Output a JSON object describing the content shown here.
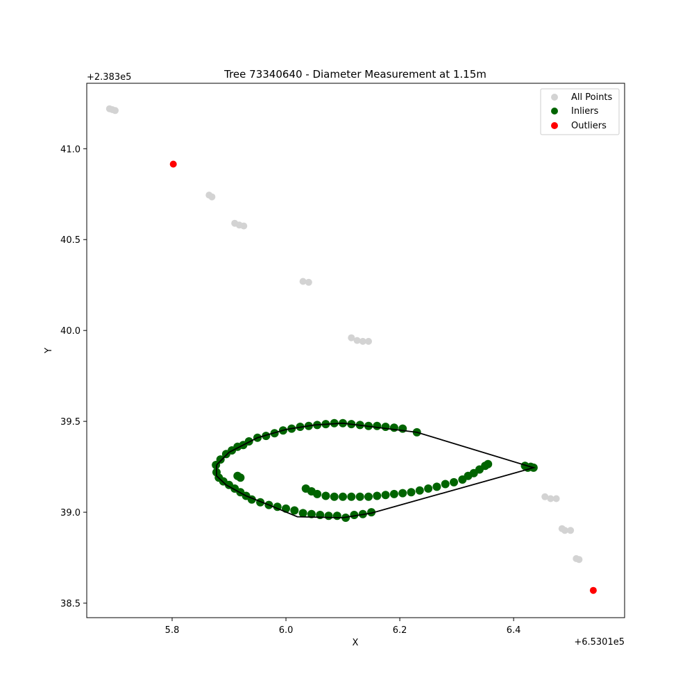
{
  "chart_data": {
    "type": "scatter",
    "title": "Tree 73340640 - Diameter Measurement at 1.15m",
    "xlabel": "X",
    "ylabel": "Y",
    "x_offset_text": "+6.5301e5",
    "y_offset_text": "+2.383e5",
    "xlim": [
      5.65,
      6.595
    ],
    "ylim": [
      38.42,
      41.36
    ],
    "xticks": [
      5.8,
      6.0,
      6.2,
      6.4
    ],
    "xtick_labels": [
      "5.8",
      "6.0",
      "6.2",
      "6.4"
    ],
    "yticks": [
      38.5,
      39.0,
      39.5,
      40.0,
      40.5,
      41.0
    ],
    "ytick_labels": [
      "38.5",
      "39.0",
      "39.5",
      "40.0",
      "40.5",
      "41.0"
    ],
    "grid": false,
    "legend_placement": "upper-right",
    "colors": {
      "all_points": "#d3d3d3",
      "inliers": "#006400",
      "outliers": "#ff0000",
      "hull": "#000000"
    },
    "series": [
      {
        "name": "All Points",
        "kind": "scatter",
        "points": [
          [
            5.69,
            41.22
          ],
          [
            5.695,
            41.215
          ],
          [
            5.7,
            41.21
          ],
          [
            5.865,
            40.745
          ],
          [
            5.87,
            40.735
          ],
          [
            5.91,
            40.59
          ],
          [
            5.918,
            40.58
          ],
          [
            5.926,
            40.575
          ],
          [
            6.03,
            40.27
          ],
          [
            6.04,
            40.265
          ],
          [
            6.115,
            39.96
          ],
          [
            6.125,
            39.945
          ],
          [
            6.135,
            39.94
          ],
          [
            6.145,
            39.94
          ],
          [
            6.455,
            39.085
          ],
          [
            6.465,
            39.075
          ],
          [
            6.475,
            39.075
          ],
          [
            6.485,
            38.91
          ],
          [
            6.49,
            38.9
          ],
          [
            6.5,
            38.9
          ],
          [
            6.51,
            38.745
          ],
          [
            6.515,
            38.74
          ]
        ]
      },
      {
        "name": "Inliers",
        "kind": "scatter",
        "points": [
          [
            5.877,
            39.26
          ],
          [
            5.878,
            39.22
          ],
          [
            5.882,
            39.19
          ],
          [
            5.885,
            39.29
          ],
          [
            5.89,
            39.17
          ],
          [
            5.895,
            39.32
          ],
          [
            5.9,
            39.15
          ],
          [
            5.905,
            39.34
          ],
          [
            5.91,
            39.13
          ],
          [
            5.915,
            39.36
          ],
          [
            5.92,
            39.11
          ],
          [
            5.925,
            39.37
          ],
          [
            5.93,
            39.09
          ],
          [
            5.935,
            39.39
          ],
          [
            5.94,
            39.07
          ],
          [
            5.95,
            39.41
          ],
          [
            5.955,
            39.055
          ],
          [
            5.965,
            39.42
          ],
          [
            5.97,
            39.04
          ],
          [
            5.98,
            39.435
          ],
          [
            5.985,
            39.03
          ],
          [
            5.995,
            39.45
          ],
          [
            6.0,
            39.02
          ],
          [
            6.01,
            39.46
          ],
          [
            6.015,
            39.01
          ],
          [
            6.025,
            39.47
          ],
          [
            6.03,
            38.995
          ],
          [
            6.04,
            39.475
          ],
          [
            6.045,
            38.99
          ],
          [
            6.055,
            39.48
          ],
          [
            6.06,
            38.985
          ],
          [
            6.07,
            39.485
          ],
          [
            6.075,
            38.98
          ],
          [
            6.085,
            39.49
          ],
          [
            6.09,
            38.98
          ],
          [
            6.1,
            39.49
          ],
          [
            6.105,
            38.97
          ],
          [
            6.115,
            39.485
          ],
          [
            6.12,
            38.985
          ],
          [
            6.13,
            39.48
          ],
          [
            6.135,
            38.99
          ],
          [
            6.145,
            39.475
          ],
          [
            6.15,
            39.0
          ],
          [
            6.16,
            39.475
          ],
          [
            6.175,
            39.47
          ],
          [
            6.19,
            39.465
          ],
          [
            6.205,
            39.46
          ],
          [
            6.23,
            39.44
          ],
          [
            5.915,
            39.2
          ],
          [
            5.92,
            39.19
          ],
          [
            6.035,
            39.13
          ],
          [
            6.045,
            39.115
          ],
          [
            6.055,
            39.1
          ],
          [
            6.07,
            39.09
          ],
          [
            6.085,
            39.085
          ],
          [
            6.1,
            39.085
          ],
          [
            6.115,
            39.085
          ],
          [
            6.13,
            39.085
          ],
          [
            6.145,
            39.085
          ],
          [
            6.16,
            39.09
          ],
          [
            6.175,
            39.095
          ],
          [
            6.19,
            39.1
          ],
          [
            6.205,
            39.105
          ],
          [
            6.22,
            39.11
          ],
          [
            6.235,
            39.12
          ],
          [
            6.25,
            39.13
          ],
          [
            6.265,
            39.14
          ],
          [
            6.28,
            39.155
          ],
          [
            6.295,
            39.165
          ],
          [
            6.31,
            39.18
          ],
          [
            6.32,
            39.2
          ],
          [
            6.33,
            39.215
          ],
          [
            6.34,
            39.235
          ],
          [
            6.35,
            39.255
          ],
          [
            6.355,
            39.265
          ],
          [
            6.42,
            39.255
          ],
          [
            6.425,
            39.245
          ],
          [
            6.43,
            39.25
          ],
          [
            6.435,
            39.245
          ]
        ]
      },
      {
        "name": "Outliers",
        "kind": "scatter",
        "points": [
          [
            5.802,
            40.915
          ],
          [
            6.54,
            38.57
          ]
        ]
      },
      {
        "name": "",
        "kind": "hull",
        "points": [
          [
            5.878,
            39.26
          ],
          [
            5.9,
            39.33
          ],
          [
            5.95,
            39.41
          ],
          [
            6.0,
            39.455
          ],
          [
            6.05,
            39.48
          ],
          [
            6.1,
            39.49
          ],
          [
            6.23,
            39.44
          ],
          [
            6.435,
            39.245
          ],
          [
            6.15,
            38.995
          ],
          [
            6.1,
            38.97
          ],
          [
            6.02,
            38.975
          ],
          [
            5.97,
            39.04
          ],
          [
            5.93,
            39.09
          ],
          [
            5.895,
            39.15
          ],
          [
            5.878,
            39.2
          ],
          [
            5.878,
            39.26
          ]
        ]
      }
    ]
  }
}
